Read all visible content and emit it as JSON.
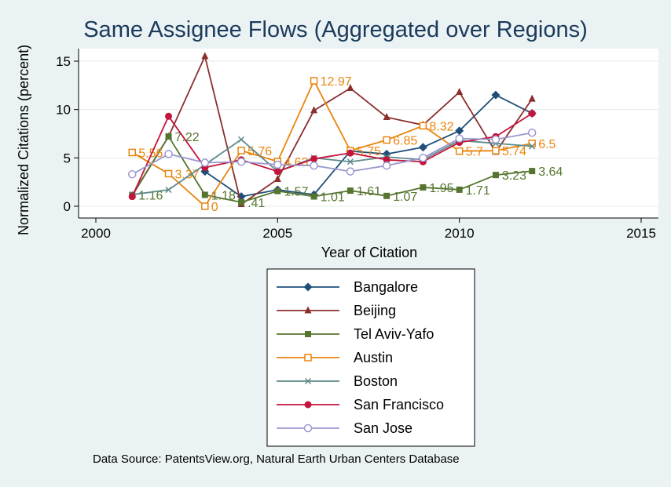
{
  "chart_data": {
    "type": "line",
    "title": "Same Assignee Flows (Aggregated over Regions)",
    "xlabel": "Year of Citation",
    "ylabel": "Normalized Citations (percent)",
    "xlim": [
      2000,
      2015
    ],
    "ylim": [
      -1,
      16.5
    ],
    "xticks": [
      2000,
      2005,
      2010,
      2015
    ],
    "yticks": [
      0,
      5,
      10,
      15
    ],
    "grid": "horizontal",
    "legend_position": "bottom",
    "source": "Data Source: PatentsView.org, Natural Earth Urban Centers Database",
    "series": [
      {
        "name": "Bangalore",
        "color": "#1f4e79",
        "marker": "diamond",
        "x": [
          2003,
          2004,
          2005,
          2006,
          2007,
          2008,
          2009,
          2010,
          2011,
          2012
        ],
        "y": [
          3.6,
          1.0,
          1.7,
          1.2,
          5.7,
          5.4,
          6.1,
          7.8,
          11.5,
          9.6
        ],
        "labels": []
      },
      {
        "name": "Beijing",
        "color": "#8b2e2e",
        "marker": "triangle",
        "x": [
          2001,
          2002,
          2003,
          2004,
          2005,
          2006,
          2007,
          2008,
          2009,
          2010,
          2011,
          2012
        ],
        "y": [
          1.1,
          7.2,
          15.5,
          0.2,
          2.8,
          9.9,
          12.2,
          9.2,
          8.4,
          11.8,
          5.6,
          11.1
        ],
        "labels": []
      },
      {
        "name": "Tel Aviv-Yafo",
        "color": "#55752f",
        "marker": "square",
        "x": [
          2001,
          2002,
          2003,
          2004,
          2005,
          2006,
          2007,
          2008,
          2009,
          2010,
          2011,
          2012
        ],
        "y": [
          1.16,
          7.22,
          1.18,
          0.41,
          1.57,
          1.01,
          1.61,
          1.07,
          1.95,
          1.71,
          3.23,
          3.64
        ],
        "labels": [
          "1.16",
          "7.22",
          "1.18",
          ".41",
          "1.57",
          "1.01",
          "1.61",
          "1.07",
          "1.95",
          "1.71",
          "3.23",
          "3.64"
        ]
      },
      {
        "name": "Austin",
        "color": "#e8850e",
        "marker": "square-hollow",
        "x": [
          2001,
          2002,
          2003,
          2004,
          2005,
          2006,
          2007,
          2008,
          2009,
          2010,
          2011,
          2012
        ],
        "y": [
          5.56,
          3.37,
          0,
          5.76,
          4.63,
          12.97,
          5.75,
          6.85,
          8.32,
          5.7,
          5.74,
          6.5
        ],
        "labels": [
          "5.56",
          "3.37",
          "0",
          "5.76",
          "4.63",
          "12.97",
          "5.75",
          "6.85",
          "8.32",
          "5.7",
          "5.74",
          "6.5"
        ]
      },
      {
        "name": "Boston",
        "color": "#5e8a8a",
        "marker": "x",
        "x": [
          2001,
          2002,
          2003,
          2004,
          2005,
          2006,
          2007,
          2008,
          2009,
          2010,
          2011,
          2012
        ],
        "y": [
          1.2,
          1.7,
          4.3,
          6.9,
          3.6,
          5.0,
          4.6,
          5.1,
          4.8,
          6.8,
          6.5,
          6.2
        ],
        "labels": []
      },
      {
        "name": "San Francisco",
        "color": "#c4143c",
        "marker": "circle",
        "x": [
          2001,
          2002,
          2003,
          2004,
          2005,
          2006,
          2007,
          2008,
          2009,
          2010,
          2011,
          2012
        ],
        "y": [
          1.0,
          9.3,
          4.0,
          4.8,
          3.6,
          4.9,
          5.5,
          4.8,
          4.6,
          6.6,
          7.2,
          9.6
        ],
        "labels": []
      },
      {
        "name": "San Jose",
        "color": "#9a98d0",
        "marker": "circle-hollow",
        "x": [
          2001,
          2002,
          2003,
          2004,
          2005,
          2006,
          2007,
          2008,
          2009,
          2010,
          2011,
          2012
        ],
        "y": [
          3.3,
          5.4,
          4.5,
          4.6,
          4.3,
          4.2,
          3.6,
          4.2,
          5.0,
          7.0,
          6.9,
          7.6
        ],
        "labels": []
      }
    ]
  }
}
